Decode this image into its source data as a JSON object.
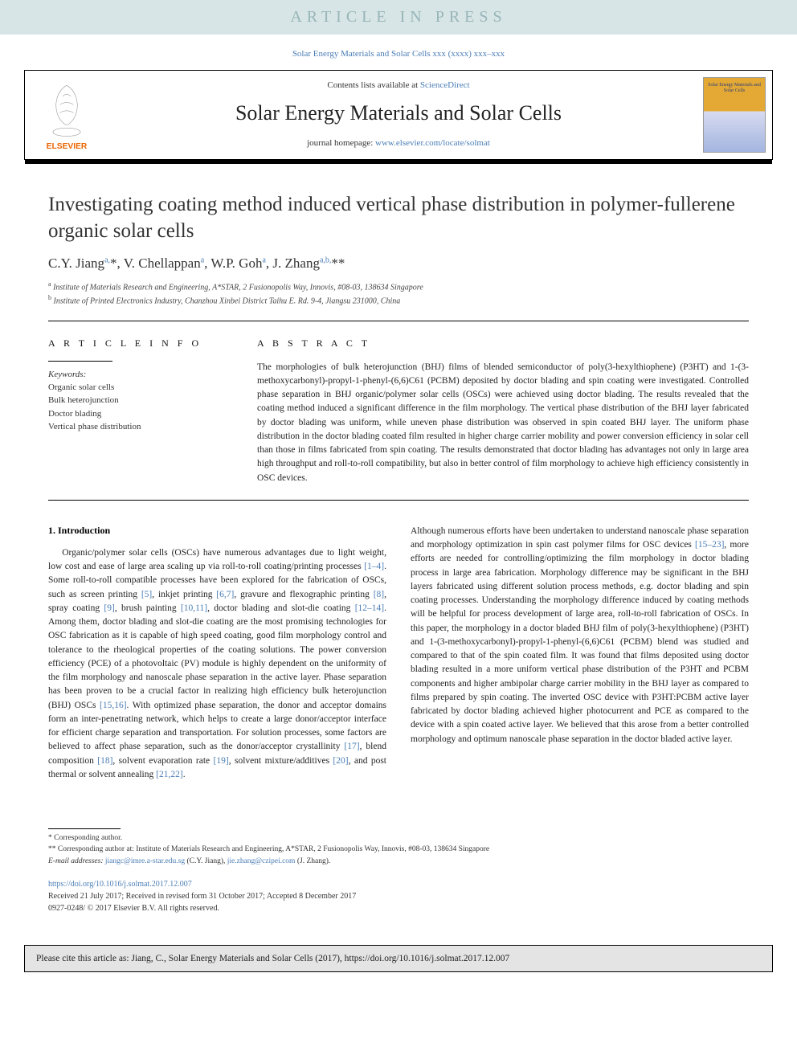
{
  "banner": {
    "text": "ARTICLE IN PRESS"
  },
  "journal_ref": "Solar Energy Materials and Solar Cells xxx (xxxx) xxx–xxx",
  "header": {
    "contents_prefix": "Contents lists available at ",
    "contents_link": "ScienceDirect",
    "journal_name": "Solar Energy Materials and Solar Cells",
    "homepage_prefix": "journal homepage: ",
    "homepage_link": "www.elsevier.com/locate/solmat",
    "cover_title": "Solar Energy Materials and Solar Cells",
    "publisher": "ELSEVIER"
  },
  "title": "Investigating coating method induced vertical phase distribution in polymer-fullerene organic solar cells",
  "authors_html": "C.Y. Jiang<sup>a,</sup>*, V. Chellappan<sup>a</sup>, W.P. Goh<sup>a</sup>, J. Zhang<sup>a,b,</sup>**",
  "affiliations": {
    "a": "Institute of Materials Research and Engineering, A*STAR, 2 Fusionopolis Way, Innovis, #08-03, 138634 Singapore",
    "b": "Institute of Printed Electronics Industry, Chanzhou Xinbei District Taihu E. Rd. 9-4, Jiangsu 231000, China"
  },
  "article_info_head": "A R T I C L E  I N F O",
  "abstract_head": "A B S T R A C T",
  "keywords_label": "Keywords:",
  "keywords": [
    "Organic solar cells",
    "Bulk heterojunction",
    "Doctor blading",
    "Vertical phase distribution"
  ],
  "abstract": "The morphologies of bulk heterojunction (BHJ) films of blended semiconductor of poly(3-hexylthiophene) (P3HT) and 1-(3-methoxycarbonyl)-propyl-1-phenyl-(6,6)C61 (PCBM) deposited by doctor blading and spin coating were investigated. Controlled phase separation in BHJ organic/polymer solar cells (OSCs) were achieved using doctor blading. The results revealed that the coating method induced a significant difference in the film morphology. The vertical phase distribution of the BHJ layer fabricated by doctor blading was uniform, while uneven phase distribution was observed in spin coated BHJ layer. The uniform phase distribution in the doctor blading coated film resulted in higher charge carrier mobility and power conversion efficiency in solar cell than those in films fabricated from spin coating. The results demonstrated that doctor blading has advantages not only in large area high throughput and roll-to-roll compatibility, but also in better control of film morphology to achieve high efficiency consistently in OSC devices.",
  "intro_head": "1. Introduction",
  "intro_left": "Organic/polymer solar cells (OSCs) have numerous advantages due to light weight, low cost and ease of large area scaling up via roll-to-roll coating/printing processes <span class=\"ref\">[1–4]</span>. Some roll-to-roll compatible processes have been explored for the fabrication of OSCs, such as screen printing <span class=\"ref\">[5]</span>, inkjet printing <span class=\"ref\">[6,7]</span>, gravure and flexographic printing <span class=\"ref\">[8]</span>, spray coating <span class=\"ref\">[9]</span>, brush painting <span class=\"ref\">[10,11]</span>, doctor blading and slot-die coating <span class=\"ref\">[12–14]</span>. Among them, doctor blading and slot-die coating are the most promising technologies for OSC fabrication as it is capable of high speed coating, good film morphology control and tolerance to the rheological properties of the coating solutions. The power conversion efficiency (PCE) of a photovoltaic (PV) module is highly dependent on the uniformity of the film morphology and nanoscale phase separation in the active layer. Phase separation has been proven to be a crucial factor in realizing high efficiency bulk heterojunction (BHJ) OSCs <span class=\"ref\">[15,16]</span>. With optimized phase separation, the donor and acceptor domains form an inter-penetrating network, which helps to create a large donor/acceptor interface for efficient charge separation and transportation. For solution processes, some factors are believed to affect phase separation, such as the donor/acceptor crystallinity <span class=\"ref\">[17]</span>, blend composition <span class=\"ref\">[18]</span>, solvent evaporation rate <span class=\"ref\">[19]</span>, solvent mixture/additives <span class=\"ref\">[20]</span>, and post thermal or solvent annealing <span class=\"ref\">[21,22]</span>.",
  "intro_right": "Although numerous efforts have been undertaken to understand nanoscale phase separation and morphology optimization in spin cast polymer films for OSC devices <span class=\"ref\">[15–23]</span>, more efforts are needed for controlling/optimizing the film morphology in doctor blading process in large area fabrication. Morphology difference may be significant in the BHJ layers fabricated using different solution process methods, e.g. doctor blading and spin coating processes. Understanding the morphology difference induced by coating methods will be helpful for process development of large area, roll-to-roll fabrication of OSCs. In this paper, the morphology in a doctor bladed BHJ film of poly(3-hexylthiophene) (P3HT) and 1-(3-methoxycarbonyl)-propyl-1-phenyl-(6,6)C61 (PCBM) blend was studied and compared to that of the spin coated film. It was found that films deposited using doctor blading resulted in a more uniform vertical phase distribution of the P3HT and PCBM components and higher ambipolar charge carrier mobility in the BHJ layer as compared to films prepared by spin coating. The inverted OSC device with P3HT:PCBM active layer fabricated by doctor blading achieved higher photocurrent and PCE as compared to the device with a spin coated active layer. We believed that this arose from a better controlled morphology and optimum nanoscale phase separation in the doctor bladed active layer.",
  "footnotes": {
    "star1": "* Corresponding author.",
    "star2": "** Corresponding author at: Institute of Materials Research and Engineering, A*STAR, 2 Fusionopolis Way, Innovis, #08-03, 138634 Singapore",
    "email_label": "E-mail addresses: ",
    "email1": "jiangc@imre.a-star.edu.sg",
    "email1_name": " (C.Y. Jiang), ",
    "email2": "jie.zhang@czipei.com",
    "email2_name": " (J. Zhang)."
  },
  "doi": {
    "url": "https://doi.org/10.1016/j.solmat.2017.12.007",
    "received": "Received 21 July 2017; Received in revised form 31 October 2017; Accepted 8 December 2017",
    "issn": "0927-0248/ © 2017 Elsevier B.V. All rights reserved."
  },
  "cite": "Please cite this article as: Jiang, C., Solar Energy Materials and Solar Cells (2017), https://doi.org/10.1016/j.solmat.2017.12.007",
  "colors": {
    "banner_bg": "#d7e5e6",
    "banner_text": "#98b5b8",
    "link": "#4a7db5",
    "elsevier_orange": "#eb6500",
    "cite_bg": "#e4e4e4"
  }
}
